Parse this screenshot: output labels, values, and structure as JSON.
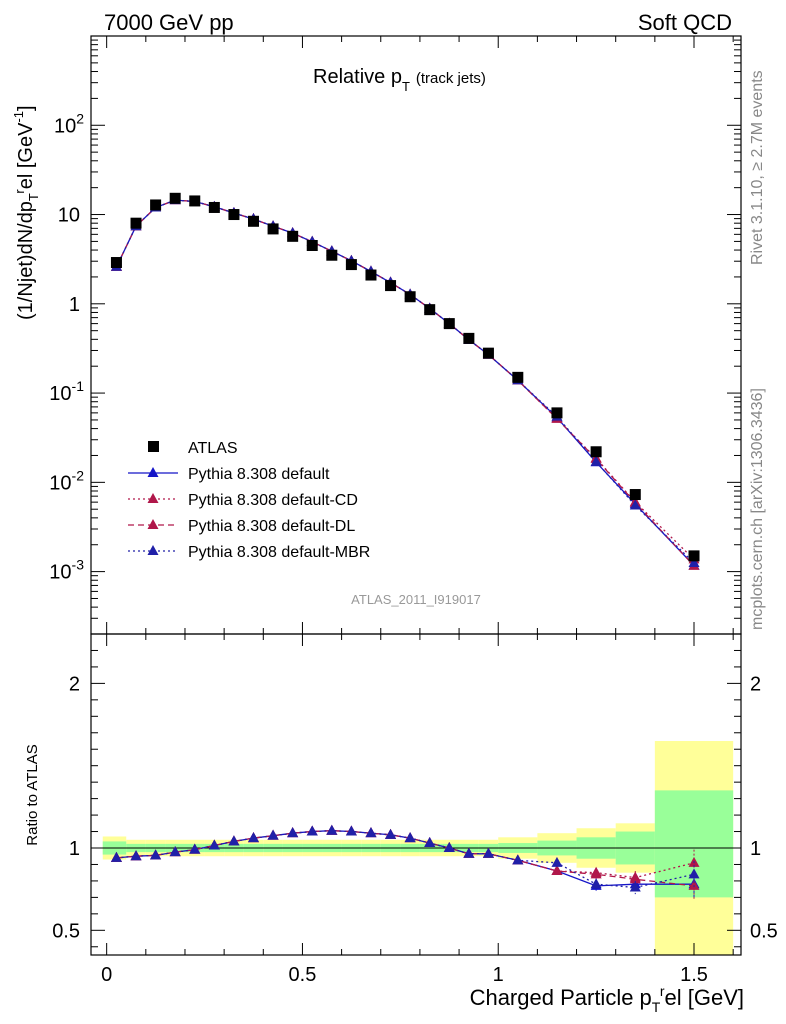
{
  "header": {
    "left": "7000 GeV pp",
    "right": "Soft QCD"
  },
  "side_labels": {
    "rivet": "Rivet 3.1.10, ≥ 2.7M events",
    "mcplots": "mcplots.cern.ch [arXiv:1306.3436]"
  },
  "chart_data": {
    "type": "line",
    "title": "Relative p_T (track jets)",
    "title_main": "Relative p",
    "title_sub": "T",
    "title_extra": "(track jets)",
    "analysis_label": "ATLAS_2011_I919017",
    "xlabel": "Charged Particle p_T^rel [GeV]",
    "xlabel_pre": "Charged Particle p",
    "xlabel_sub": "T",
    "xlabel_sup": "r",
    "xlabel_post": "el [GeV]",
    "ylabel": "(1/Njet)dN/dp_T^rel [GeV^-1]",
    "ylabel_pre": "(1/Njet)dN/dp",
    "ylabel_sub": "T",
    "ylabel_sup": "r",
    "ylabel_post": "el [GeV",
    "ylabel_exp": "-1",
    "ylabel_close": "]",
    "ratio_ylabel": "Ratio to ATLAS",
    "xlim": [
      -0.04,
      1.62
    ],
    "ylim": [
      0.0002,
      1000
    ],
    "yscale": "log",
    "ratio_ylim": [
      0.35,
      2.3
    ],
    "x_ticks": [
      0,
      0.5,
      1,
      1.5
    ],
    "x_tick_labels": [
      "0",
      "0.5",
      "1",
      "1.5"
    ],
    "y_ticks": [
      0.001,
      0.01,
      0.1,
      1,
      10,
      100
    ],
    "y_tick_labels": [
      {
        "base": "10",
        "exp": "-3"
      },
      {
        "base": "10",
        "exp": "-2"
      },
      {
        "base": "10",
        "exp": "-1"
      },
      {
        "base": "1",
        "exp": ""
      },
      {
        "base": "10",
        "exp": ""
      },
      {
        "base": "10",
        "exp": "2"
      }
    ],
    "ratio_ticks": [
      0.5,
      1,
      2
    ],
    "ratio_tick_labels": [
      "0.5",
      "1",
      "2"
    ],
    "legend_position": "lower-left",
    "x": [
      0.025,
      0.075,
      0.125,
      0.175,
      0.225,
      0.275,
      0.325,
      0.375,
      0.425,
      0.475,
      0.525,
      0.575,
      0.625,
      0.675,
      0.725,
      0.775,
      0.825,
      0.875,
      0.925,
      0.975,
      1.05,
      1.15,
      1.25,
      1.35,
      1.5
    ],
    "data": {
      "name": "ATLAS",
      "color": "#000000",
      "values": [
        2.9,
        8.0,
        12.8,
        15.2,
        14.2,
        12.0,
        10.0,
        8.4,
        6.9,
        5.7,
        4.5,
        3.5,
        2.75,
        2.1,
        1.6,
        1.2,
        0.86,
        0.6,
        0.41,
        0.28,
        0.15,
        0.06,
        0.022,
        0.0073,
        0.0015
      ]
    },
    "series": [
      {
        "name": "Pythia 8.308 default",
        "color": "#1515c8",
        "dash": "solid",
        "values": [
          2.6,
          7.4,
          12.0,
          14.5,
          14.0,
          12.2,
          10.4,
          8.9,
          7.4,
          6.2,
          4.95,
          3.88,
          3.03,
          2.3,
          1.73,
          1.27,
          0.885,
          0.6,
          0.395,
          0.27,
          0.139,
          0.053,
          0.0168,
          0.0057,
          0.00117
        ]
      },
      {
        "name": "Pythia 8.308 default-CD",
        "color": "#b0174a",
        "dash": "dotted",
        "values": [
          2.6,
          7.4,
          12.0,
          14.5,
          14.0,
          12.2,
          10.4,
          8.9,
          7.4,
          6.2,
          4.95,
          3.88,
          3.03,
          2.3,
          1.73,
          1.27,
          0.885,
          0.6,
          0.395,
          0.27,
          0.139,
          0.0515,
          0.0186,
          0.006,
          0.00137
        ]
      },
      {
        "name": "Pythia 8.308 default-DL",
        "color": "#b0174a",
        "dash": "dashed",
        "values": [
          2.6,
          7.4,
          12.0,
          14.5,
          14.0,
          12.2,
          10.4,
          8.9,
          7.4,
          6.2,
          4.95,
          3.88,
          3.03,
          2.3,
          1.73,
          1.27,
          0.885,
          0.6,
          0.395,
          0.27,
          0.139,
          0.0515,
          0.0183,
          0.0059,
          0.00116
        ]
      },
      {
        "name": "Pythia 8.308 default-MBR",
        "color": "#2020a8",
        "dash": "dotted",
        "values": [
          2.6,
          7.4,
          12.0,
          14.5,
          14.0,
          12.2,
          10.4,
          8.9,
          7.4,
          6.2,
          4.95,
          3.88,
          3.03,
          2.3,
          1.73,
          1.27,
          0.885,
          0.6,
          0.395,
          0.27,
          0.139,
          0.0545,
          0.017,
          0.0055,
          0.00125
        ]
      }
    ],
    "ratio_series": [
      {
        "name": "Pythia 8.308 default",
        "values": [
          0.94,
          0.95,
          0.955,
          0.975,
          0.99,
          1.015,
          1.04,
          1.06,
          1.075,
          1.09,
          1.1,
          1.105,
          1.1,
          1.09,
          1.08,
          1.06,
          1.03,
          1.0,
          0.965,
          0.965,
          0.925,
          0.86,
          0.77,
          0.78,
          0.78
        ],
        "errors": [
          0.005,
          0.005,
          0.005,
          0.005,
          0.005,
          0.005,
          0.005,
          0.005,
          0.005,
          0.005,
          0.005,
          0.005,
          0.005,
          0.005,
          0.005,
          0.005,
          0.006,
          0.007,
          0.008,
          0.01,
          0.012,
          0.02,
          0.03,
          0.04,
          0.08
        ]
      },
      {
        "name": "Pythia 8.308 default-CD",
        "values": [
          0.94,
          0.95,
          0.955,
          0.975,
          0.99,
          1.015,
          1.04,
          1.06,
          1.075,
          1.09,
          1.1,
          1.105,
          1.1,
          1.09,
          1.08,
          1.06,
          1.03,
          1.0,
          0.965,
          0.965,
          0.925,
          0.86,
          0.85,
          0.82,
          0.91
        ],
        "errors": [
          0.005,
          0.005,
          0.005,
          0.005,
          0.005,
          0.005,
          0.005,
          0.005,
          0.005,
          0.005,
          0.005,
          0.005,
          0.005,
          0.005,
          0.005,
          0.005,
          0.006,
          0.007,
          0.008,
          0.01,
          0.012,
          0.02,
          0.03,
          0.04,
          0.08
        ]
      },
      {
        "name": "Pythia 8.308 default-DL",
        "values": [
          0.94,
          0.95,
          0.955,
          0.975,
          0.99,
          1.015,
          1.04,
          1.06,
          1.075,
          1.09,
          1.1,
          1.105,
          1.1,
          1.09,
          1.08,
          1.06,
          1.03,
          1.0,
          0.965,
          0.965,
          0.925,
          0.86,
          0.84,
          0.81,
          0.77
        ],
        "errors": [
          0.005,
          0.005,
          0.005,
          0.005,
          0.005,
          0.005,
          0.005,
          0.005,
          0.005,
          0.005,
          0.005,
          0.005,
          0.005,
          0.005,
          0.005,
          0.005,
          0.006,
          0.007,
          0.008,
          0.01,
          0.012,
          0.02,
          0.03,
          0.04,
          0.08
        ]
      },
      {
        "name": "Pythia 8.308 default-MBR",
        "values": [
          0.94,
          0.95,
          0.955,
          0.975,
          0.99,
          1.015,
          1.04,
          1.06,
          1.075,
          1.09,
          1.1,
          1.105,
          1.1,
          1.09,
          1.08,
          1.06,
          1.03,
          1.0,
          0.965,
          0.965,
          0.925,
          0.91,
          0.78,
          0.76,
          0.84
        ],
        "errors": [
          0.005,
          0.005,
          0.005,
          0.005,
          0.005,
          0.005,
          0.005,
          0.005,
          0.005,
          0.005,
          0.005,
          0.005,
          0.005,
          0.005,
          0.005,
          0.005,
          0.006,
          0.007,
          0.008,
          0.01,
          0.012,
          0.02,
          0.03,
          0.04,
          0.08
        ]
      }
    ],
    "uncertainty_bands": {
      "bins": [
        [
          -0.01,
          0.05
        ],
        [
          0.05,
          0.1
        ],
        [
          0.1,
          0.15
        ],
        [
          0.15,
          0.2
        ],
        [
          0.2,
          0.25
        ],
        [
          0.25,
          0.3
        ],
        [
          0.3,
          0.35
        ],
        [
          0.35,
          0.4
        ],
        [
          0.4,
          0.45
        ],
        [
          0.45,
          0.5
        ],
        [
          0.5,
          0.55
        ],
        [
          0.55,
          0.6
        ],
        [
          0.6,
          0.65
        ],
        [
          0.65,
          0.7
        ],
        [
          0.7,
          0.75
        ],
        [
          0.75,
          0.8
        ],
        [
          0.8,
          0.85
        ],
        [
          0.85,
          0.9
        ],
        [
          0.9,
          0.95
        ],
        [
          0.95,
          1.0
        ],
        [
          1.0,
          1.1
        ],
        [
          1.1,
          1.2
        ],
        [
          1.2,
          1.3
        ],
        [
          1.3,
          1.4
        ],
        [
          1.4,
          1.6
        ]
      ],
      "inner": [
        [
          0.96,
          1.04
        ],
        [
          0.975,
          1.025
        ],
        [
          0.975,
          1.025
        ],
        [
          0.975,
          1.025
        ],
        [
          0.975,
          1.025
        ],
        [
          0.975,
          1.025
        ],
        [
          0.975,
          1.025
        ],
        [
          0.975,
          1.025
        ],
        [
          0.975,
          1.025
        ],
        [
          0.975,
          1.025
        ],
        [
          0.975,
          1.025
        ],
        [
          0.975,
          1.025
        ],
        [
          0.975,
          1.025
        ],
        [
          0.975,
          1.025
        ],
        [
          0.975,
          1.025
        ],
        [
          0.975,
          1.025
        ],
        [
          0.975,
          1.025
        ],
        [
          0.975,
          1.025
        ],
        [
          0.975,
          1.025
        ],
        [
          0.975,
          1.025
        ],
        [
          0.97,
          1.03
        ],
        [
          0.955,
          1.045
        ],
        [
          0.935,
          1.065
        ],
        [
          0.9,
          1.1
        ],
        [
          0.7,
          1.35
        ]
      ],
      "outer": [
        [
          0.93,
          1.07
        ],
        [
          0.95,
          1.05
        ],
        [
          0.95,
          1.05
        ],
        [
          0.95,
          1.05
        ],
        [
          0.95,
          1.05
        ],
        [
          0.95,
          1.05
        ],
        [
          0.95,
          1.05
        ],
        [
          0.95,
          1.05
        ],
        [
          0.95,
          1.05
        ],
        [
          0.95,
          1.05
        ],
        [
          0.95,
          1.05
        ],
        [
          0.95,
          1.05
        ],
        [
          0.95,
          1.05
        ],
        [
          0.95,
          1.05
        ],
        [
          0.95,
          1.05
        ],
        [
          0.95,
          1.05
        ],
        [
          0.95,
          1.05
        ],
        [
          0.95,
          1.05
        ],
        [
          0.95,
          1.05
        ],
        [
          0.95,
          1.05
        ],
        [
          0.935,
          1.065
        ],
        [
          0.91,
          1.09
        ],
        [
          0.88,
          1.12
        ],
        [
          0.85,
          1.15
        ],
        [
          0.35,
          1.65
        ]
      ],
      "inner_color": "#99ff99",
      "outer_color": "#ffff99"
    }
  }
}
